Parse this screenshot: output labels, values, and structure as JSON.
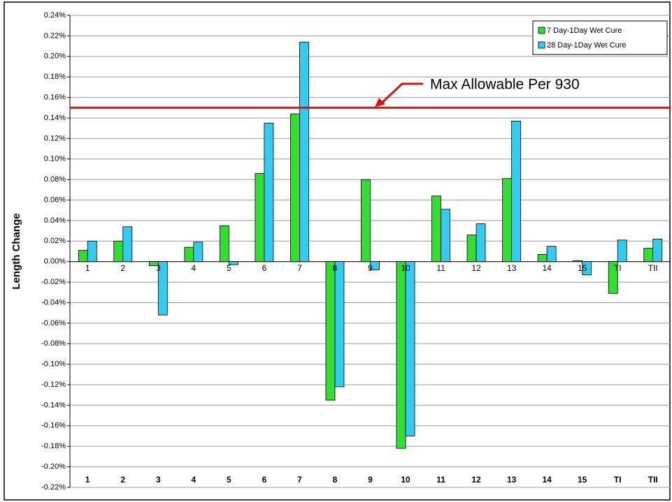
{
  "chart_data": {
    "type": "bar",
    "y_axis_label": "Length Change",
    "categories": [
      "1",
      "2",
      "3",
      "4",
      "5",
      "6",
      "7",
      "8",
      "9",
      "10",
      "11",
      "12",
      "13",
      "14",
      "15",
      "TI",
      "TII"
    ],
    "series": [
      {
        "name": "7 Day-1Day Wet Cure",
        "color": "#33dd33",
        "values": [
          0.011,
          0.02,
          -0.004,
          0.014,
          0.035,
          0.086,
          0.144,
          -0.135,
          0.08,
          -0.182,
          0.064,
          0.026,
          0.081,
          0.007,
          0.001,
          -0.031,
          0.013
        ]
      },
      {
        "name": "28 Day-1Day Wet Cure",
        "color": "#33ccee",
        "values": [
          0.02,
          0.034,
          -0.052,
          0.019,
          -0.003,
          0.135,
          0.214,
          -0.122,
          -0.008,
          -0.17,
          0.051,
          0.037,
          0.137,
          0.015,
          -0.013,
          0.021,
          0.022
        ]
      }
    ],
    "ylim": [
      -0.22,
      0.24
    ],
    "yticks": [
      {
        "value": -0.22,
        "label": "-0.22%"
      },
      {
        "value": -0.2,
        "label": "-0.20%"
      },
      {
        "value": -0.18,
        "label": "-0.18%"
      },
      {
        "value": -0.16,
        "label": "-0.16%"
      },
      {
        "value": -0.14,
        "label": "-0.14%"
      },
      {
        "value": -0.12,
        "label": "-0.12%"
      },
      {
        "value": -0.1,
        "label": "-0.10%"
      },
      {
        "value": -0.08,
        "label": "-0.08%"
      },
      {
        "value": -0.06,
        "label": "-0.06%"
      },
      {
        "value": -0.04,
        "label": "-0.04%"
      },
      {
        "value": -0.02,
        "label": "-0.02%"
      },
      {
        "value": 0,
        "label": "0.00%"
      },
      {
        "value": 0.02,
        "label": "0.02%"
      },
      {
        "value": 0.04,
        "label": "0.04%"
      },
      {
        "value": 0.06,
        "label": "0.06%"
      },
      {
        "value": 0.08,
        "label": "0.08%"
      },
      {
        "value": 0.1,
        "label": "0.10%"
      },
      {
        "value": 0.12,
        "label": "0.12%"
      },
      {
        "value": 0.14,
        "label": "0.14%"
      },
      {
        "value": 0.16,
        "label": "0.16%"
      },
      {
        "value": 0.18,
        "label": "0.18%"
      },
      {
        "value": 0.2,
        "label": "0.20%"
      },
      {
        "value": 0.22,
        "label": "0.22%"
      },
      {
        "value": 0.24,
        "label": "0.24%"
      }
    ],
    "grid": true,
    "legend": "top-right",
    "reference_line": {
      "value": 0.15,
      "label": "Max Allowable Per 930",
      "color": "#dd1111"
    }
  }
}
